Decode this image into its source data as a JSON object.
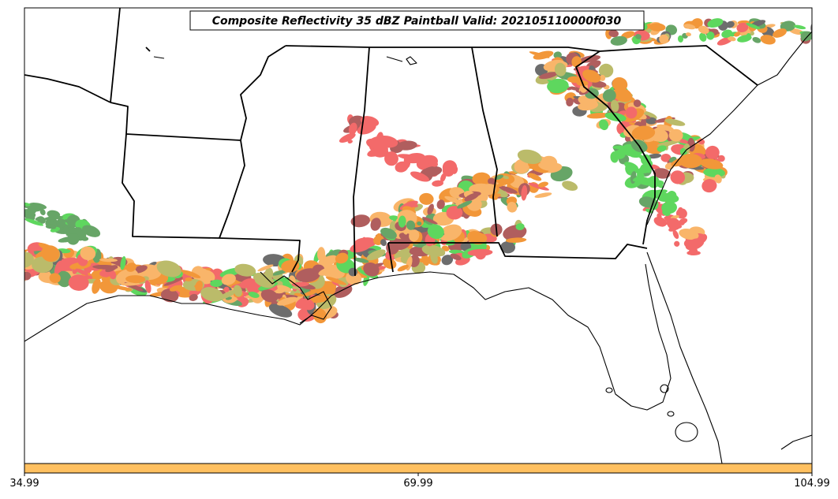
{
  "title": "Composite Reflectivity 35 dBZ Paintball Valid: 202105110000f030",
  "colorbar": {
    "color": "#ffc060",
    "ticks": [
      "34.99",
      "69.99",
      "104.99"
    ]
  },
  "palette": {
    "red": "#f04040",
    "orange": "#ee7a00",
    "light_orange": "#f8a040",
    "green": "#30cc30",
    "dark_green": "#3c8c3c",
    "olive": "#a8a840",
    "brown": "#9a3030",
    "dark_gray": "#444444",
    "outline": "#000000"
  }
}
